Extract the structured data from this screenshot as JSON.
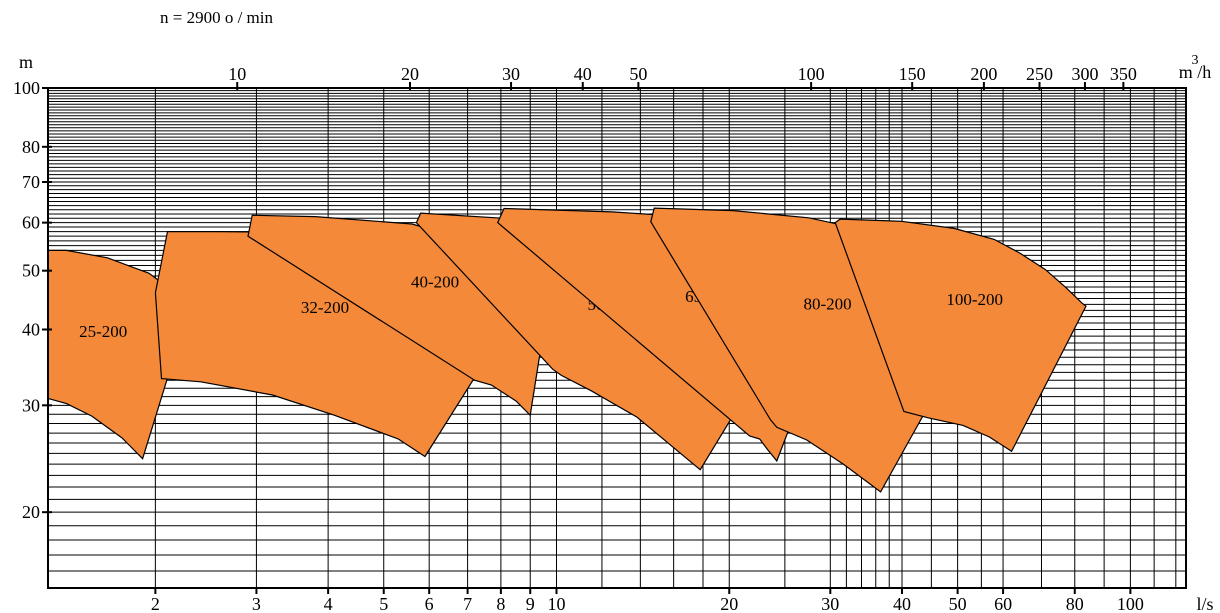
{
  "header": {
    "speed_label": "n = 2900 o / min"
  },
  "colors": {
    "region_fill": "#F4893A",
    "stroke": "#000000",
    "grid": "#000000",
    "background": "#ffffff"
  },
  "chart_data": {
    "type": "area",
    "title": "",
    "axes": {
      "y": {
        "label": "m",
        "scale": "log",
        "range": [
          15,
          100
        ],
        "tick_values": [
          20,
          30,
          40,
          50,
          60,
          70,
          80,
          100
        ],
        "tick_labels": [
          "20",
          "30",
          "40",
          "50",
          "60",
          "70",
          "80",
          "100"
        ],
        "grid": true
      },
      "x_bottom": {
        "label": "l/s",
        "scale": "log",
        "range": [
          1.3,
          125
        ],
        "tick_values": [
          2,
          3,
          4,
          5,
          6,
          7,
          8,
          9,
          10,
          20,
          30,
          40,
          50,
          60,
          80,
          100
        ],
        "tick_labels": [
          "2",
          "3",
          "4",
          "5",
          "6",
          "7",
          "8",
          "9",
          "10",
          "20",
          "30",
          "40",
          "50",
          "60",
          "80",
          "100"
        ],
        "grid": true
      },
      "x_top": {
        "label": "m³/h",
        "label_sup": "3",
        "label_main": "m /h",
        "scale": "log",
        "tick_values": [
          10,
          20,
          30,
          40,
          50,
          100,
          150,
          200,
          250,
          300,
          350
        ],
        "tick_labels": [
          "10",
          "20",
          "30",
          "40",
          "50",
          "100",
          "150",
          "200",
          "250",
          "300",
          "350"
        ]
      }
    },
    "series": [
      {
        "name": "25-200",
        "polygon": [
          [
            1.3,
            54
          ],
          [
            1.4,
            54
          ],
          [
            1.65,
            52.5
          ],
          [
            1.95,
            49.5
          ],
          [
            2.3,
            44
          ],
          [
            1.9,
            24.5
          ],
          [
            1.75,
            26.5
          ],
          [
            1.55,
            28.8
          ],
          [
            1.4,
            30.2
          ],
          [
            1.3,
            30.8
          ]
        ]
      },
      {
        "name": "32-200",
        "polygon": [
          [
            2.0,
            46
          ],
          [
            2.1,
            58
          ],
          [
            2.6,
            58
          ],
          [
            3.6,
            57.8
          ],
          [
            4.7,
            56.4
          ],
          [
            5.6,
            54
          ],
          [
            6.6,
            50.2
          ],
          [
            7.6,
            46
          ],
          [
            8.5,
            42.8
          ],
          [
            5.9,
            24.7
          ],
          [
            5.3,
            26.4
          ],
          [
            4.1,
            28.9
          ],
          [
            3.2,
            31.2
          ],
          [
            2.4,
            32.8
          ],
          [
            2.05,
            33.2
          ]
        ]
      },
      {
        "name": "40-200",
        "polygon": [
          [
            2.9,
            57
          ],
          [
            2.95,
            61.7
          ],
          [
            3.8,
            61.4
          ],
          [
            5.6,
            59.7
          ],
          [
            7.2,
            55.8
          ],
          [
            8.6,
            51.7
          ],
          [
            9.85,
            49.5
          ],
          [
            9.0,
            28.9
          ],
          [
            8.5,
            30.5
          ],
          [
            7.7,
            32.4
          ],
          [
            7.2,
            33
          ]
        ]
      },
      {
        "name": "50-200",
        "polygon": [
          [
            5.7,
            60
          ],
          [
            5.8,
            62.2
          ],
          [
            8.1,
            61
          ],
          [
            10.7,
            59.7
          ],
          [
            13.2,
            57.3
          ],
          [
            15.9,
            54
          ],
          [
            18.8,
            49.5
          ],
          [
            21.7,
            41.8
          ],
          [
            24.4,
            38.4
          ],
          [
            17.8,
            23.5
          ],
          [
            16.2,
            25.3
          ],
          [
            13.8,
            28.7
          ],
          [
            11.5,
            31.7
          ],
          [
            10.2,
            33.6
          ],
          [
            9.85,
            34.4
          ]
        ]
      },
      {
        "name": "65-200",
        "polygon": [
          [
            7.9,
            60
          ],
          [
            8.1,
            63.3
          ],
          [
            12.5,
            62.5
          ],
          [
            18.1,
            61.1
          ],
          [
            23.5,
            57.8
          ],
          [
            28,
            53.7
          ],
          [
            32.1,
            48.8
          ],
          [
            24.2,
            24.3
          ],
          [
            23.3,
            25.4
          ],
          [
            22.6,
            26.4
          ],
          [
            21.7,
            26.7
          ]
        ]
      },
      {
        "name": "80-200",
        "polygon": [
          [
            14.6,
            60.2
          ],
          [
            14.8,
            63.4
          ],
          [
            20.3,
            62.8
          ],
          [
            27.5,
            61.1
          ],
          [
            34.6,
            58.3
          ],
          [
            40.6,
            55.5
          ],
          [
            46.2,
            51.4
          ],
          [
            52.4,
            45.2
          ],
          [
            55.3,
            43.3
          ],
          [
            36.7,
            21.6
          ],
          [
            31.6,
            24
          ],
          [
            27.3,
            26.3
          ],
          [
            24.2,
            27.6
          ],
          [
            23.6,
            28.4
          ]
        ]
      },
      {
        "name": "100-200",
        "polygon": [
          [
            30.6,
            60
          ],
          [
            31.2,
            60.8
          ],
          [
            39.9,
            60.3
          ],
          [
            49.3,
            58.7
          ],
          [
            57.9,
            56.3
          ],
          [
            64.1,
            53.5
          ],
          [
            71.1,
            50.2
          ],
          [
            77.2,
            46.9
          ],
          [
            82.4,
            44.2
          ],
          [
            83.7,
            43.7
          ],
          [
            62.1,
            25.2
          ],
          [
            56.8,
            26.6
          ],
          [
            51.1,
            27.8
          ],
          [
            44.5,
            28.6
          ],
          [
            40.3,
            29.3
          ]
        ]
      }
    ]
  }
}
